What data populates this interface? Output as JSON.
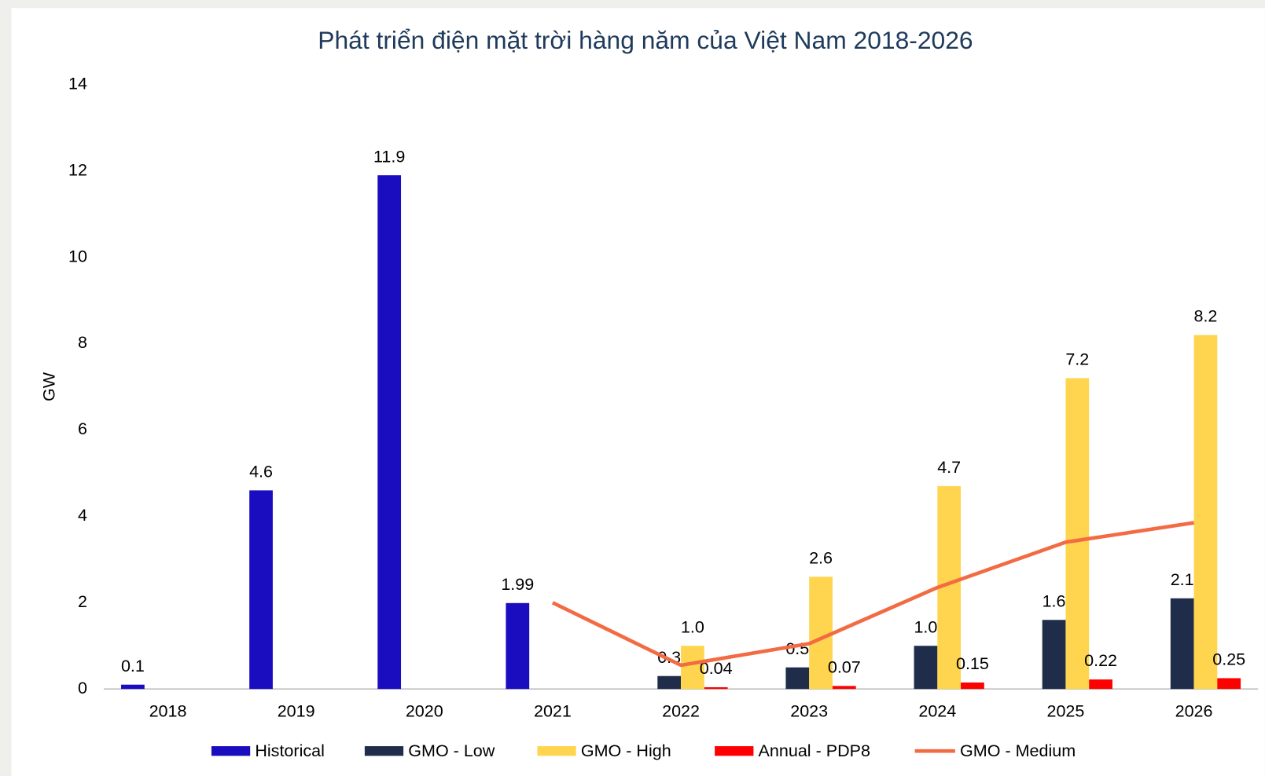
{
  "chart_data": {
    "type": "bar",
    "title": "Phát triển điện mặt trời hàng năm của Việt Nam 2018-2026",
    "ylabel": "GW",
    "categories": [
      "2018",
      "2019",
      "2020",
      "2021",
      "2022",
      "2023",
      "2024",
      "2025",
      "2026"
    ],
    "ylim": [
      0,
      14
    ],
    "yticks": [
      0,
      2,
      4,
      6,
      8,
      10,
      12,
      14
    ],
    "series": [
      {
        "name": "Historical",
        "color": "#1a0dbf",
        "type": "bar",
        "values": [
          0.1,
          4.6,
          11.9,
          1.99,
          null,
          null,
          null,
          null,
          null
        ],
        "value_labels": [
          "0.1",
          "4.6",
          "11.9",
          "1.99",
          null,
          null,
          null,
          null,
          null
        ]
      },
      {
        "name": "GMO - Low",
        "color": "#1f2d4a",
        "type": "bar",
        "values": [
          null,
          null,
          null,
          null,
          0.3,
          0.5,
          1,
          1.6,
          2.1
        ],
        "value_labels": [
          null,
          null,
          null,
          null,
          "0.3",
          "0.5",
          "1.0",
          "1.6",
          "2.1"
        ]
      },
      {
        "name": "GMO - High",
        "color": "#ffd54f",
        "type": "bar",
        "values": [
          null,
          null,
          null,
          null,
          1,
          2.6,
          4.7,
          7.2,
          8.2
        ],
        "value_labels": [
          null,
          null,
          null,
          null,
          "1.0",
          "2.6",
          "4.7",
          "7.2",
          "8.2"
        ]
      },
      {
        "name": "Annual - PDP8",
        "color": "#ff0000",
        "type": "bar",
        "values": [
          null,
          null,
          null,
          null,
          0.04,
          0.07,
          0.15,
          0.22,
          0.25
        ],
        "value_labels": [
          null,
          null,
          null,
          null,
          "0.04",
          "0.07",
          "0.15",
          "0.22",
          "0.25"
        ]
      },
      {
        "name": "GMO - Medium",
        "color": "#f26b43",
        "type": "line",
        "values": [
          null,
          null,
          null,
          2,
          0.55,
          1.05,
          2.35,
          3.4,
          3.85
        ]
      }
    ]
  }
}
